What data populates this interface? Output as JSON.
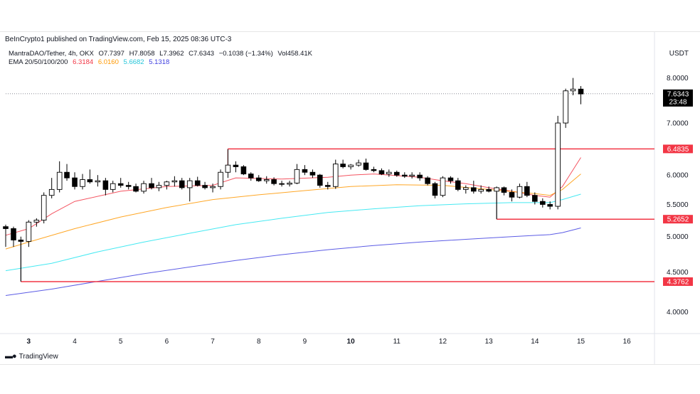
{
  "header": {
    "published": "BeInCrypto1 published on TradingView.com, Feb 15, 2025 08:36 UTC-3",
    "currency": "USDT"
  },
  "legend": {
    "symbol": "MantraDAO/Tether, 4h, OKX",
    "open": "O7.7397",
    "high": "H7.8058",
    "low": "L7.3962",
    "close": "C7.6343",
    "change": "−0.1038 (−1.34%)",
    "volume": "Vol458.41K",
    "ema_label": "EMA 20/50/100/200",
    "ema_values": [
      "6.3184",
      "6.0160",
      "5.6682",
      "5.1318"
    ]
  },
  "footer": {
    "brand": "TradingView"
  },
  "colors": {
    "up": "#ffffff",
    "down": "#000000",
    "ema20": "#f23645",
    "ema50": "#ff9800",
    "ema100": "#26e5f0",
    "ema200": "#3f3fe0",
    "level": "#f23645"
  },
  "chart_data": {
    "type": "candlestick",
    "y_scale": "log",
    "ylim": [
      3.8,
      8.25
    ],
    "y_ticks": [
      "8.0000",
      "7.0000",
      "6.0000",
      "5.5000",
      "5.0000",
      "4.5000",
      "4.0000"
    ],
    "x_ticks": [
      "3",
      "4",
      "5",
      "6",
      "7",
      "8",
      "9",
      "10",
      "11",
      "12",
      "13",
      "14",
      "15",
      "16"
    ],
    "x_tick_bold": [
      "3",
      "10"
    ],
    "x_range_days": [
      2.5,
      16.6
    ],
    "current_price": {
      "value": "7.6343",
      "countdown": "23:48"
    },
    "levels": [
      {
        "value": 6.4835,
        "label": "6.4835",
        "from_day": 7.33
      },
      {
        "value": 5.2652,
        "label": "5.2652",
        "from_day": 13.17
      },
      {
        "value": 4.3762,
        "label": "4.3762",
        "from_day": 2.83
      }
    ],
    "candles": [
      {
        "t": 2.5,
        "o": 5.15,
        "h": 5.18,
        "l": 4.85,
        "c": 5.12
      },
      {
        "t": 2.67,
        "o": 5.12,
        "h": 5.15,
        "l": 4.85,
        "c": 4.95
      },
      {
        "t": 2.83,
        "o": 4.95,
        "h": 5.0,
        "l": 4.38,
        "c": 4.93
      },
      {
        "t": 3.0,
        "o": 4.93,
        "h": 5.25,
        "l": 4.85,
        "c": 5.22
      },
      {
        "t": 3.17,
        "o": 5.22,
        "h": 5.28,
        "l": 5.15,
        "c": 5.25
      },
      {
        "t": 3.33,
        "o": 5.25,
        "h": 5.7,
        "l": 5.2,
        "c": 5.65
      },
      {
        "t": 3.5,
        "o": 5.65,
        "h": 5.95,
        "l": 5.6,
        "c": 5.75
      },
      {
        "t": 3.67,
        "o": 5.75,
        "h": 6.25,
        "l": 5.7,
        "c": 6.05
      },
      {
        "t": 3.83,
        "o": 6.05,
        "h": 6.2,
        "l": 5.9,
        "c": 5.95
      },
      {
        "t": 4.0,
        "o": 5.95,
        "h": 6.05,
        "l": 5.75,
        "c": 5.8
      },
      {
        "t": 4.17,
        "o": 5.8,
        "h": 6.02,
        "l": 5.75,
        "c": 5.92
      },
      {
        "t": 4.33,
        "o": 5.92,
        "h": 6.1,
        "l": 5.85,
        "c": 5.88
      },
      {
        "t": 4.5,
        "o": 5.88,
        "h": 6.0,
        "l": 5.8,
        "c": 5.9
      },
      {
        "t": 4.67,
        "o": 5.9,
        "h": 5.95,
        "l": 5.65,
        "c": 5.75
      },
      {
        "t": 4.83,
        "o": 5.75,
        "h": 5.9,
        "l": 5.7,
        "c": 5.85
      },
      {
        "t": 5.0,
        "o": 5.85,
        "h": 5.95,
        "l": 5.78,
        "c": 5.82
      },
      {
        "t": 5.17,
        "o": 5.82,
        "h": 5.88,
        "l": 5.75,
        "c": 5.8
      },
      {
        "t": 5.33,
        "o": 5.8,
        "h": 5.85,
        "l": 5.7,
        "c": 5.72
      },
      {
        "t": 5.5,
        "o": 5.72,
        "h": 5.9,
        "l": 5.68,
        "c": 5.85
      },
      {
        "t": 5.67,
        "o": 5.85,
        "h": 5.95,
        "l": 5.75,
        "c": 5.78
      },
      {
        "t": 5.83,
        "o": 5.78,
        "h": 5.88,
        "l": 5.72,
        "c": 5.82
      },
      {
        "t": 6.0,
        "o": 5.82,
        "h": 5.9,
        "l": 5.75,
        "c": 5.88
      },
      {
        "t": 6.17,
        "o": 5.88,
        "h": 5.98,
        "l": 5.8,
        "c": 5.9
      },
      {
        "t": 6.33,
        "o": 5.9,
        "h": 5.95,
        "l": 5.75,
        "c": 5.78
      },
      {
        "t": 6.5,
        "o": 5.78,
        "h": 5.95,
        "l": 5.55,
        "c": 5.9
      },
      {
        "t": 6.67,
        "o": 5.9,
        "h": 5.97,
        "l": 5.8,
        "c": 5.82
      },
      {
        "t": 6.83,
        "o": 5.82,
        "h": 5.88,
        "l": 5.75,
        "c": 5.78
      },
      {
        "t": 7.0,
        "o": 5.78,
        "h": 5.85,
        "l": 5.7,
        "c": 5.8
      },
      {
        "t": 7.17,
        "o": 5.8,
        "h": 6.1,
        "l": 5.75,
        "c": 6.05
      },
      {
        "t": 7.33,
        "o": 6.05,
        "h": 6.48,
        "l": 5.95,
        "c": 6.18
      },
      {
        "t": 7.5,
        "o": 6.18,
        "h": 6.25,
        "l": 6.05,
        "c": 6.15
      },
      {
        "t": 7.67,
        "o": 6.15,
        "h": 6.18,
        "l": 6.0,
        "c": 6.02
      },
      {
        "t": 7.83,
        "o": 6.02,
        "h": 6.05,
        "l": 5.9,
        "c": 5.95
      },
      {
        "t": 8.0,
        "o": 5.95,
        "h": 6.0,
        "l": 5.88,
        "c": 5.9
      },
      {
        "t": 8.17,
        "o": 5.9,
        "h": 5.98,
        "l": 5.85,
        "c": 5.92
      },
      {
        "t": 8.33,
        "o": 5.92,
        "h": 5.96,
        "l": 5.82,
        "c": 5.85
      },
      {
        "t": 8.5,
        "o": 5.85,
        "h": 5.9,
        "l": 5.8,
        "c": 5.84
      },
      {
        "t": 8.67,
        "o": 5.84,
        "h": 5.9,
        "l": 5.8,
        "c": 5.86
      },
      {
        "t": 8.83,
        "o": 5.86,
        "h": 6.2,
        "l": 5.84,
        "c": 6.1
      },
      {
        "t": 9.0,
        "o": 6.1,
        "h": 6.18,
        "l": 6.0,
        "c": 6.05
      },
      {
        "t": 9.17,
        "o": 6.05,
        "h": 6.1,
        "l": 5.95,
        "c": 6.0
      },
      {
        "t": 9.33,
        "o": 6.0,
        "h": 6.02,
        "l": 5.78,
        "c": 5.82
      },
      {
        "t": 9.5,
        "o": 5.82,
        "h": 5.88,
        "l": 5.75,
        "c": 5.8
      },
      {
        "t": 9.67,
        "o": 5.8,
        "h": 6.28,
        "l": 5.76,
        "c": 6.2
      },
      {
        "t": 9.83,
        "o": 6.2,
        "h": 6.28,
        "l": 6.12,
        "c": 6.15
      },
      {
        "t": 10.0,
        "o": 6.15,
        "h": 6.2,
        "l": 6.1,
        "c": 6.18
      },
      {
        "t": 10.17,
        "o": 6.18,
        "h": 6.28,
        "l": 6.15,
        "c": 6.22
      },
      {
        "t": 10.33,
        "o": 6.22,
        "h": 6.3,
        "l": 6.08,
        "c": 6.1
      },
      {
        "t": 10.5,
        "o": 6.1,
        "h": 6.15,
        "l": 6.05,
        "c": 6.08
      },
      {
        "t": 10.67,
        "o": 6.08,
        "h": 6.12,
        "l": 6.0,
        "c": 6.02
      },
      {
        "t": 10.83,
        "o": 6.02,
        "h": 6.1,
        "l": 5.97,
        "c": 6.05
      },
      {
        "t": 11.0,
        "o": 6.05,
        "h": 6.08,
        "l": 5.97,
        "c": 6.0
      },
      {
        "t": 11.17,
        "o": 6.0,
        "h": 6.05,
        "l": 5.95,
        "c": 5.98
      },
      {
        "t": 11.33,
        "o": 5.98,
        "h": 6.05,
        "l": 5.94,
        "c": 6.0
      },
      {
        "t": 11.5,
        "o": 6.0,
        "h": 6.05,
        "l": 5.9,
        "c": 5.95
      },
      {
        "t": 11.67,
        "o": 5.95,
        "h": 5.98,
        "l": 5.82,
        "c": 5.85
      },
      {
        "t": 11.83,
        "o": 5.85,
        "h": 5.88,
        "l": 5.6,
        "c": 5.65
      },
      {
        "t": 12.0,
        "o": 5.65,
        "h": 5.98,
        "l": 5.62,
        "c": 5.95
      },
      {
        "t": 12.17,
        "o": 5.95,
        "h": 5.98,
        "l": 5.85,
        "c": 5.9
      },
      {
        "t": 12.33,
        "o": 5.9,
        "h": 5.95,
        "l": 5.72,
        "c": 5.75
      },
      {
        "t": 12.5,
        "o": 5.75,
        "h": 5.82,
        "l": 5.68,
        "c": 5.78
      },
      {
        "t": 12.67,
        "o": 5.78,
        "h": 5.9,
        "l": 5.68,
        "c": 5.72
      },
      {
        "t": 12.83,
        "o": 5.72,
        "h": 5.82,
        "l": 5.68,
        "c": 5.75
      },
      {
        "t": 13.0,
        "o": 5.75,
        "h": 5.8,
        "l": 5.7,
        "c": 5.72
      },
      {
        "t": 13.17,
        "o": 5.72,
        "h": 5.8,
        "l": 5.27,
        "c": 5.78
      },
      {
        "t": 13.33,
        "o": 5.78,
        "h": 5.8,
        "l": 5.65,
        "c": 5.7
      },
      {
        "t": 13.5,
        "o": 5.7,
        "h": 5.75,
        "l": 5.55,
        "c": 5.62
      },
      {
        "t": 13.67,
        "o": 5.62,
        "h": 5.85,
        "l": 5.6,
        "c": 5.8
      },
      {
        "t": 13.83,
        "o": 5.8,
        "h": 5.88,
        "l": 5.62,
        "c": 5.65
      },
      {
        "t": 14.0,
        "o": 5.65,
        "h": 5.7,
        "l": 5.5,
        "c": 5.55
      },
      {
        "t": 14.17,
        "o": 5.55,
        "h": 5.6,
        "l": 5.45,
        "c": 5.5
      },
      {
        "t": 14.33,
        "o": 5.5,
        "h": 5.55,
        "l": 5.42,
        "c": 5.47
      },
      {
        "t": 14.5,
        "o": 5.47,
        "h": 7.15,
        "l": 5.42,
        "c": 7.0
      },
      {
        "t": 14.67,
        "o": 7.0,
        "h": 7.75,
        "l": 6.9,
        "c": 7.7
      },
      {
        "t": 14.83,
        "o": 7.7,
        "h": 8.0,
        "l": 7.6,
        "c": 7.74
      },
      {
        "t": 15.0,
        "o": 7.74,
        "h": 7.81,
        "l": 7.4,
        "c": 7.63
      }
    ],
    "ema": [
      {
        "name": "EMA 20",
        "points": [
          [
            2.5,
            5.02
          ],
          [
            3.0,
            5.12
          ],
          [
            3.5,
            5.35
          ],
          [
            4.0,
            5.55
          ],
          [
            5.0,
            5.72
          ],
          [
            6.0,
            5.8
          ],
          [
            7.0,
            5.82
          ],
          [
            7.5,
            5.95
          ],
          [
            8.5,
            5.93
          ],
          [
            9.5,
            5.96
          ],
          [
            10.0,
            6.0
          ],
          [
            10.5,
            6.02
          ],
          [
            11.5,
            5.96
          ],
          [
            12.0,
            5.9
          ],
          [
            12.5,
            5.85
          ],
          [
            13.0,
            5.78
          ],
          [
            13.5,
            5.72
          ],
          [
            14.0,
            5.65
          ],
          [
            14.33,
            5.62
          ],
          [
            14.6,
            5.8
          ],
          [
            15.0,
            6.32
          ]
        ]
      },
      {
        "name": "EMA 50",
        "points": [
          [
            2.5,
            4.82
          ],
          [
            3.0,
            4.92
          ],
          [
            4.0,
            5.12
          ],
          [
            5.0,
            5.3
          ],
          [
            6.0,
            5.45
          ],
          [
            7.0,
            5.58
          ],
          [
            8.0,
            5.66
          ],
          [
            9.0,
            5.73
          ],
          [
            10.0,
            5.8
          ],
          [
            11.0,
            5.83
          ],
          [
            12.0,
            5.82
          ],
          [
            13.0,
            5.75
          ],
          [
            14.0,
            5.68
          ],
          [
            14.33,
            5.65
          ],
          [
            14.6,
            5.75
          ],
          [
            15.0,
            6.02
          ]
        ]
      },
      {
        "name": "EMA 100",
        "points": [
          [
            2.5,
            4.52
          ],
          [
            3.5,
            4.62
          ],
          [
            4.5,
            4.78
          ],
          [
            5.5,
            4.92
          ],
          [
            6.5,
            5.05
          ],
          [
            7.5,
            5.18
          ],
          [
            8.5,
            5.28
          ],
          [
            9.5,
            5.37
          ],
          [
            10.5,
            5.43
          ],
          [
            11.5,
            5.48
          ],
          [
            12.5,
            5.51
          ],
          [
            13.5,
            5.53
          ],
          [
            14.33,
            5.53
          ],
          [
            14.6,
            5.58
          ],
          [
            15.0,
            5.67
          ]
        ]
      },
      {
        "name": "EMA 200",
        "points": [
          [
            2.5,
            4.2
          ],
          [
            3.5,
            4.28
          ],
          [
            4.5,
            4.38
          ],
          [
            5.5,
            4.48
          ],
          [
            6.5,
            4.57
          ],
          [
            7.5,
            4.66
          ],
          [
            8.5,
            4.74
          ],
          [
            9.5,
            4.81
          ],
          [
            10.5,
            4.87
          ],
          [
            11.5,
            4.92
          ],
          [
            12.5,
            4.96
          ],
          [
            13.5,
            5.0
          ],
          [
            14.33,
            5.03
          ],
          [
            14.6,
            5.06
          ],
          [
            15.0,
            5.13
          ]
        ]
      }
    ]
  }
}
